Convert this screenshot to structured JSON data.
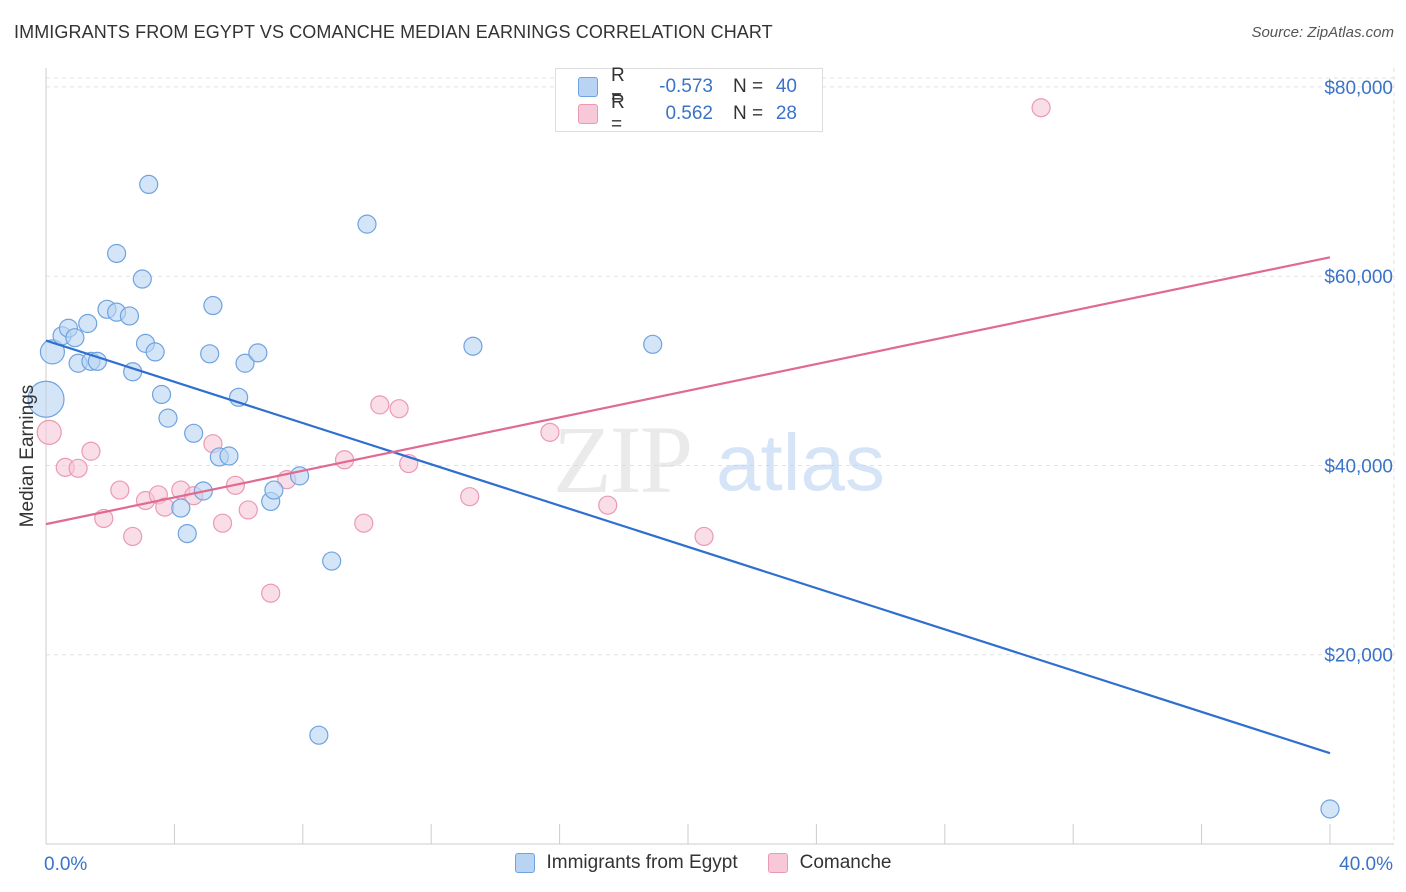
{
  "chart_data": {
    "type": "scatter",
    "title": "IMMIGRANTS FROM EGYPT VS COMANCHE MEDIAN EARNINGS CORRELATION CHART",
    "source": "Source: ZipAtlas.com",
    "xlabel": "",
    "ylabel": "Median Earnings",
    "xlim": [
      0,
      40
    ],
    "ylim": [
      0,
      82000
    ],
    "x_tick_labels": [
      {
        "value": 0,
        "label": "0.0%"
      },
      {
        "value": 40,
        "label": "40.0%"
      }
    ],
    "y_ticks": [
      {
        "value": 20000,
        "label": "$20,000"
      },
      {
        "value": 40000,
        "label": "$40,000"
      },
      {
        "value": 60000,
        "label": "$60,000"
      },
      {
        "value": 80000,
        "label": "$80,000"
      }
    ],
    "watermark": {
      "zip": "ZIP",
      "atlas": "atlas"
    },
    "legend": [
      {
        "r_label": "R =",
        "r_value": "-0.573",
        "n_label": "N =",
        "n_value": "40"
      },
      {
        "r_label": "R =",
        "r_value": "0.562",
        "n_label": "N =",
        "n_value": "28"
      }
    ],
    "series": [
      {
        "name": "Immigrants from Egypt",
        "color": "#6fa3e0",
        "fill": "#b9d3f3",
        "line_color": "#2f6fd0",
        "trend": [
          [
            0,
            53200
          ],
          [
            40,
            9600
          ]
        ],
        "points": [
          {
            "x": 0.0,
            "y": 47000,
            "size": 18
          },
          {
            "x": 0.2,
            "y": 52000,
            "size": 12
          },
          {
            "x": 0.5,
            "y": 53700,
            "size": 9
          },
          {
            "x": 0.7,
            "y": 54500,
            "size": 9
          },
          {
            "x": 0.9,
            "y": 53500,
            "size": 9
          },
          {
            "x": 1.0,
            "y": 50800,
            "size": 9
          },
          {
            "x": 1.3,
            "y": 55000,
            "size": 9
          },
          {
            "x": 1.4,
            "y": 51000,
            "size": 9
          },
          {
            "x": 1.6,
            "y": 51000,
            "size": 9
          },
          {
            "x": 1.9,
            "y": 56500,
            "size": 9
          },
          {
            "x": 2.2,
            "y": 56200,
            "size": 9
          },
          {
            "x": 2.2,
            "y": 62400,
            "size": 9
          },
          {
            "x": 2.6,
            "y": 55800,
            "size": 9
          },
          {
            "x": 2.7,
            "y": 49900,
            "size": 9
          },
          {
            "x": 3.0,
            "y": 59700,
            "size": 9
          },
          {
            "x": 3.1,
            "y": 52900,
            "size": 9
          },
          {
            "x": 3.2,
            "y": 69700,
            "size": 9
          },
          {
            "x": 3.4,
            "y": 52000,
            "size": 9
          },
          {
            "x": 3.6,
            "y": 47500,
            "size": 9
          },
          {
            "x": 3.8,
            "y": 45000,
            "size": 9
          },
          {
            "x": 4.2,
            "y": 35500,
            "size": 9
          },
          {
            "x": 4.4,
            "y": 32800,
            "size": 9
          },
          {
            "x": 4.6,
            "y": 43400,
            "size": 9
          },
          {
            "x": 4.9,
            "y": 37300,
            "size": 9
          },
          {
            "x": 5.1,
            "y": 51800,
            "size": 9
          },
          {
            "x": 5.2,
            "y": 56900,
            "size": 9
          },
          {
            "x": 5.4,
            "y": 40900,
            "size": 9
          },
          {
            "x": 5.7,
            "y": 41000,
            "size": 9
          },
          {
            "x": 6.0,
            "y": 47200,
            "size": 9
          },
          {
            "x": 6.2,
            "y": 50800,
            "size": 9
          },
          {
            "x": 6.6,
            "y": 51900,
            "size": 9
          },
          {
            "x": 7.0,
            "y": 36200,
            "size": 9
          },
          {
            "x": 7.1,
            "y": 37400,
            "size": 9
          },
          {
            "x": 7.9,
            "y": 38900,
            "size": 9
          },
          {
            "x": 8.5,
            "y": 11500,
            "size": 9
          },
          {
            "x": 8.9,
            "y": 29900,
            "size": 9
          },
          {
            "x": 10.0,
            "y": 65500,
            "size": 9
          },
          {
            "x": 13.3,
            "y": 52600,
            "size": 9
          },
          {
            "x": 18.9,
            "y": 52800,
            "size": 9
          },
          {
            "x": 40.0,
            "y": 3700,
            "size": 9
          }
        ]
      },
      {
        "name": "Comanche",
        "color": "#eb99b4",
        "fill": "#f7c8d7",
        "line_color": "#e06a92",
        "trend": [
          [
            0,
            33800
          ],
          [
            40,
            62000
          ]
        ],
        "points": [
          {
            "x": 0.1,
            "y": 43500,
            "size": 12
          },
          {
            "x": 0.6,
            "y": 39800,
            "size": 9
          },
          {
            "x": 1.0,
            "y": 39700,
            "size": 9
          },
          {
            "x": 1.4,
            "y": 41500,
            "size": 9
          },
          {
            "x": 1.8,
            "y": 34400,
            "size": 9
          },
          {
            "x": 2.3,
            "y": 37400,
            "size": 9
          },
          {
            "x": 2.7,
            "y": 32500,
            "size": 9
          },
          {
            "x": 3.1,
            "y": 36300,
            "size": 9
          },
          {
            "x": 3.5,
            "y": 36900,
            "size": 9
          },
          {
            "x": 3.7,
            "y": 35600,
            "size": 9
          },
          {
            "x": 4.2,
            "y": 37400,
            "size": 9
          },
          {
            "x": 4.6,
            "y": 36800,
            "size": 9
          },
          {
            "x": 5.2,
            "y": 42300,
            "size": 9
          },
          {
            "x": 5.5,
            "y": 33900,
            "size": 9
          },
          {
            "x": 5.9,
            "y": 37900,
            "size": 9
          },
          {
            "x": 6.3,
            "y": 35300,
            "size": 9
          },
          {
            "x": 7.0,
            "y": 26500,
            "size": 9
          },
          {
            "x": 7.5,
            "y": 38500,
            "size": 9
          },
          {
            "x": 9.3,
            "y": 40600,
            "size": 9
          },
          {
            "x": 9.9,
            "y": 33900,
            "size": 9
          },
          {
            "x": 10.4,
            "y": 46400,
            "size": 9
          },
          {
            "x": 11.0,
            "y": 46000,
            "size": 9
          },
          {
            "x": 11.3,
            "y": 40200,
            "size": 9
          },
          {
            "x": 13.2,
            "y": 36700,
            "size": 9
          },
          {
            "x": 15.7,
            "y": 43500,
            "size": 9
          },
          {
            "x": 17.5,
            "y": 35800,
            "size": 9
          },
          {
            "x": 20.5,
            "y": 32500,
            "size": 9
          },
          {
            "x": 31.0,
            "y": 77800,
            "size": 9
          }
        ]
      }
    ]
  }
}
